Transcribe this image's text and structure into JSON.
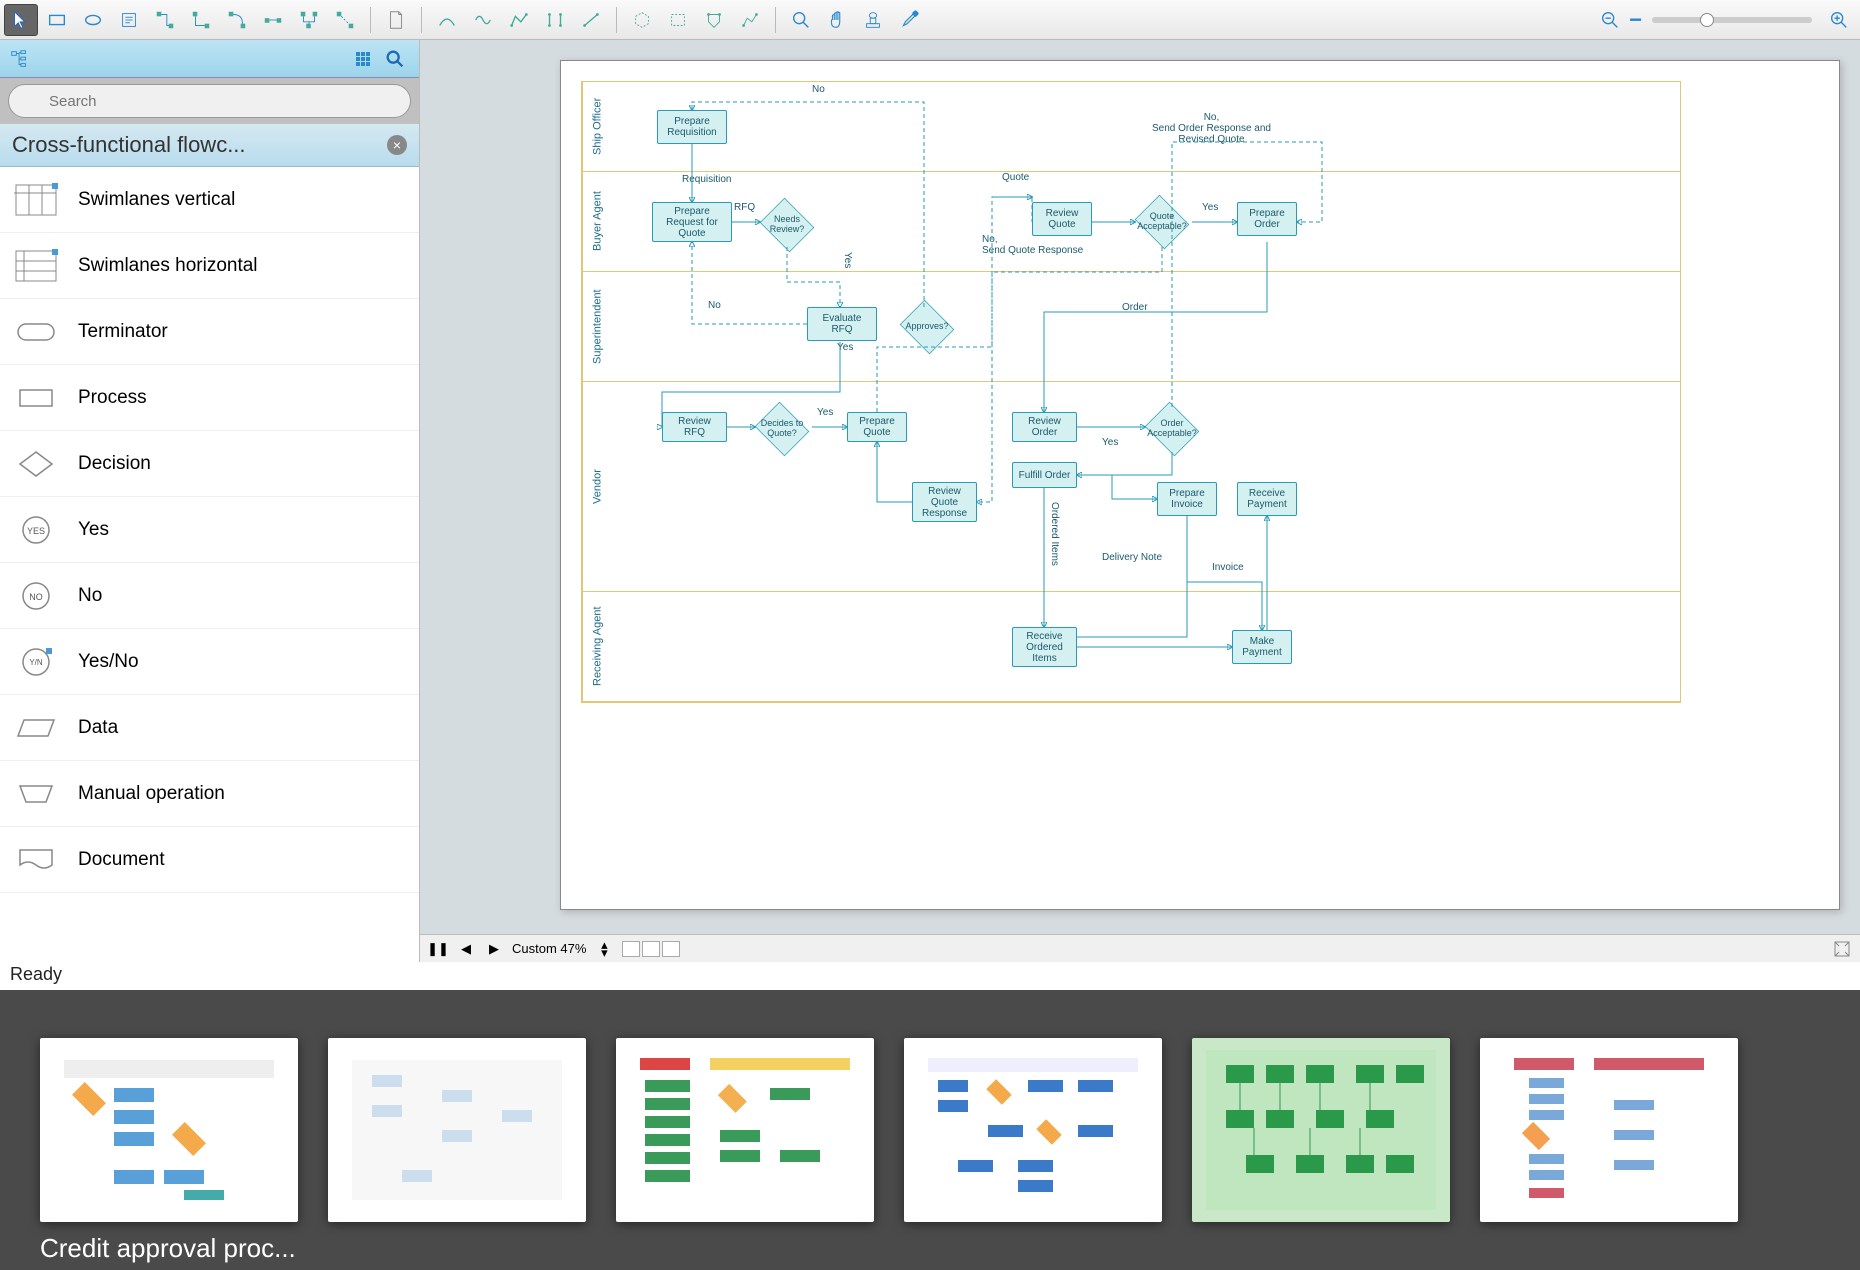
{
  "toolbar": {
    "tools": [
      "pointer",
      "rect",
      "ellipse",
      "text",
      "connector1",
      "connector2",
      "connector3",
      "connector4",
      "connector5",
      "connector6",
      "page",
      "curve1",
      "curve2",
      "curve3",
      "line1",
      "line2",
      "poly1",
      "poly2",
      "poly3",
      "poly4",
      "find",
      "hand",
      "stamp",
      "eyedropper"
    ],
    "zoom_out": "−",
    "zoom_in": "+"
  },
  "sidebar": {
    "search_placeholder": "Search",
    "header": "Cross-functional flowc...",
    "shapes": [
      {
        "label": "Swimlanes vertical",
        "kind": "swimlane_v"
      },
      {
        "label": "Swimlanes horizontal",
        "kind": "swimlane_h"
      },
      {
        "label": "Terminator",
        "kind": "terminator"
      },
      {
        "label": "Process",
        "kind": "process"
      },
      {
        "label": "Decision",
        "kind": "decision"
      },
      {
        "label": "Yes",
        "kind": "yes"
      },
      {
        "label": "No",
        "kind": "no"
      },
      {
        "label": "Yes/No",
        "kind": "yesno"
      },
      {
        "label": "Data",
        "kind": "data"
      },
      {
        "label": "Manual operation",
        "kind": "manual"
      },
      {
        "label": "Document",
        "kind": "document"
      }
    ]
  },
  "diagram": {
    "lanes": [
      {
        "key": "officer",
        "title": "Ship Officer"
      },
      {
        "key": "buyer",
        "title": "Buyer Agent"
      },
      {
        "key": "super",
        "title": "Superintendent"
      },
      {
        "key": "vendor",
        "title": "Vendor"
      },
      {
        "key": "recv",
        "title": "Receiving Agent"
      }
    ],
    "nodes": {
      "prep_req": "Prepare Requisition",
      "prep_rfq": "Prepare Request for Quote",
      "needs_review": "Needs Review?",
      "eval_rfq": "Evaluate RFQ",
      "approves": "Approves?",
      "review_rfq": "Review RFQ",
      "decides": "Decides to Quote?",
      "prep_quote": "Prepare Quote",
      "rev_quote_resp": "Review Quote Response",
      "review_quote": "Review Quote",
      "quote_acc": "Quote Acceptable?",
      "prep_order": "Prepare Order",
      "review_order": "Review Order",
      "order_acc": "Order Acceptable?",
      "fulfill": "Fulfill Order",
      "prep_inv": "Prepare Invoice",
      "recv_pay": "Receive Payment",
      "recv_items": "Receive Ordered Items",
      "make_pay": "Make Payment"
    },
    "labels": {
      "no": "No",
      "yes": "Yes",
      "requisition": "Requisition",
      "rfq": "RFQ",
      "quote": "Quote",
      "quote_resp": "No,\nSend Quote Response",
      "order_resp": "No,\nSend Order Response and\nRevised Quote",
      "order": "Order",
      "ordered_items": "Ordered Items",
      "delivery_note": "Delivery Note",
      "invoice": "Invoice"
    },
    "colors": {
      "node_fill": "#d4f0f0",
      "node_stroke": "#2a9bb5",
      "lane_border": "#e0c878",
      "text": "#1a5a6c"
    }
  },
  "bottom": {
    "zoom_label": "Custom 47%"
  },
  "status": "Ready",
  "gallery": {
    "caption": "Credit approval proc...",
    "thumbs": 6
  }
}
